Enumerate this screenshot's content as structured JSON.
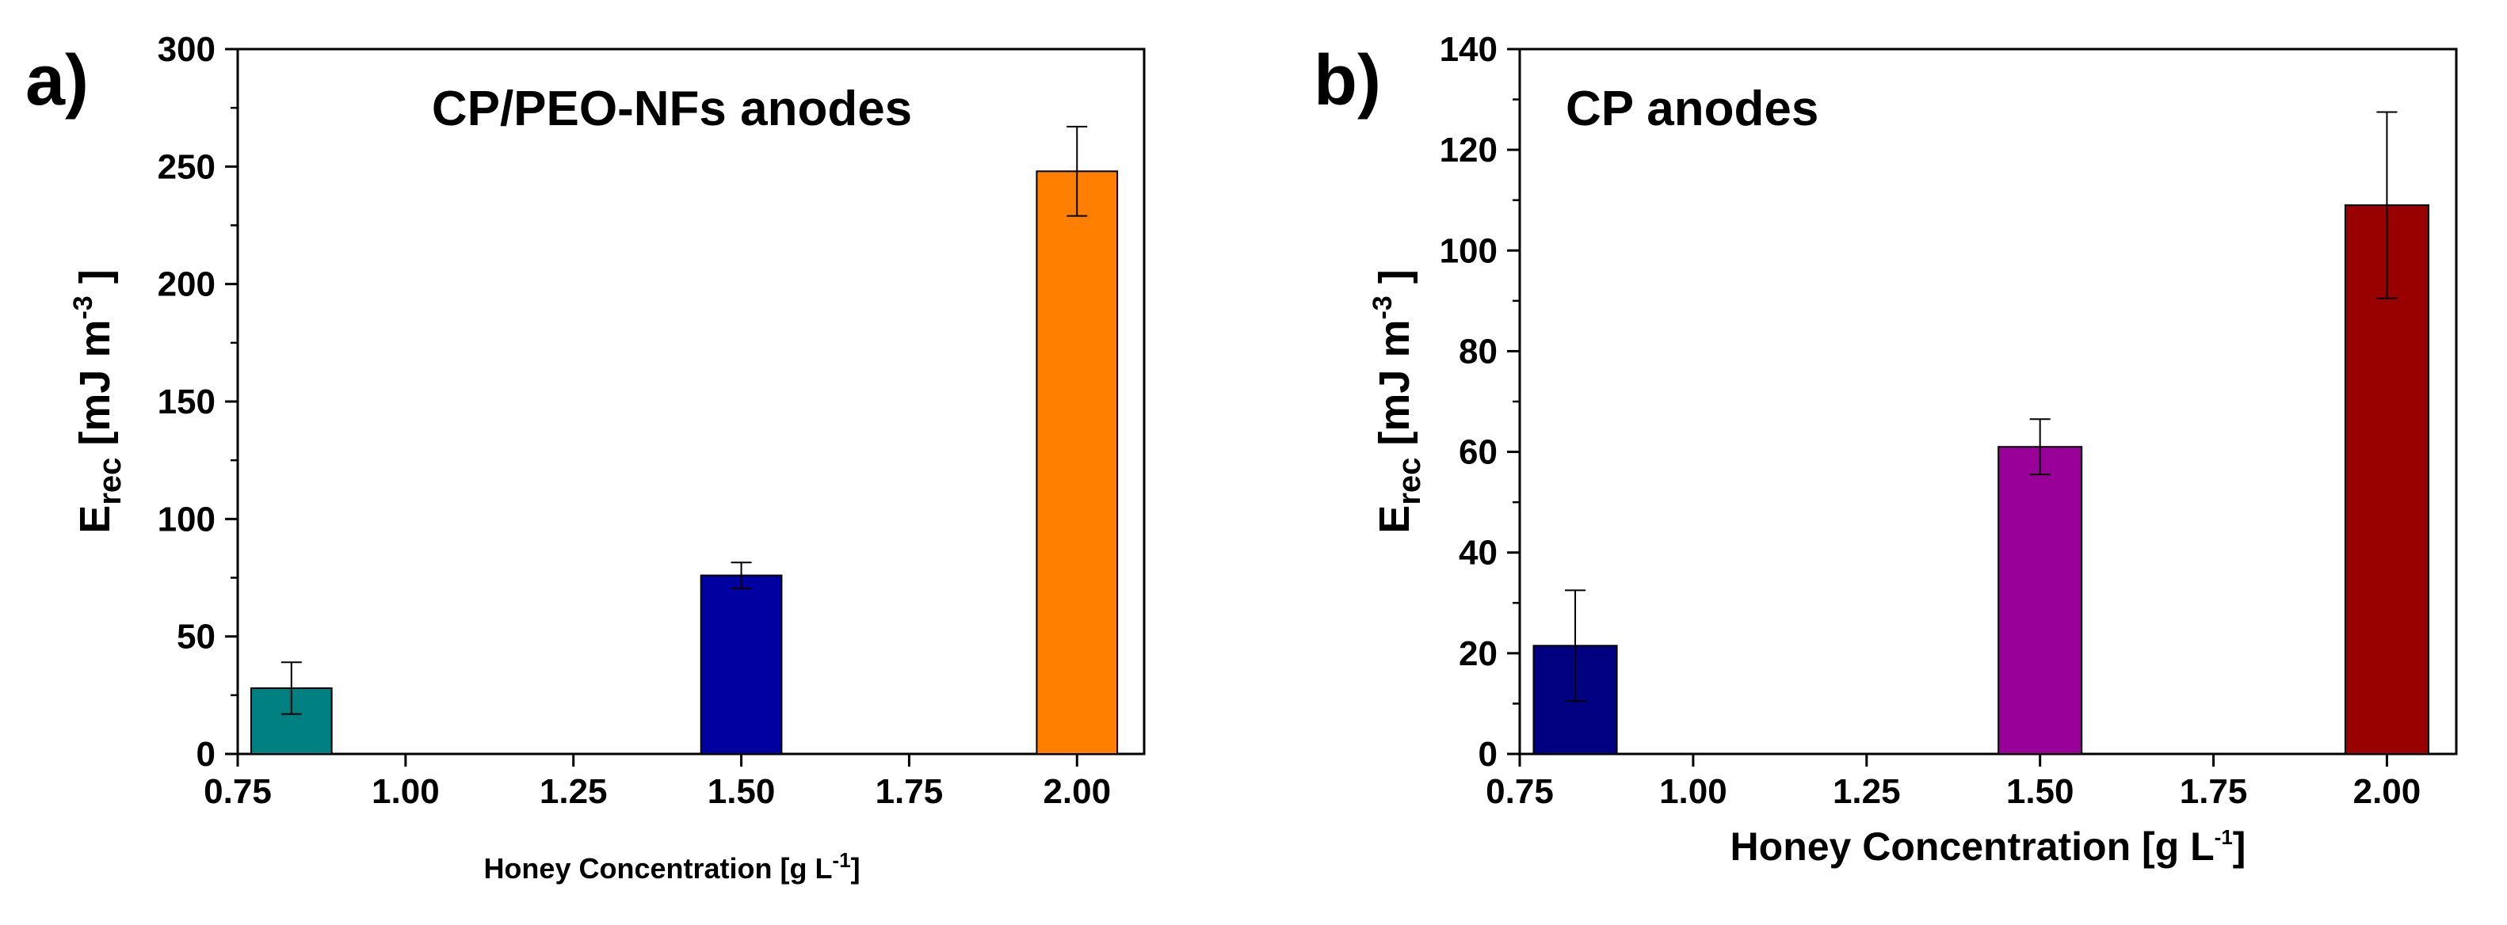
{
  "chart_data": [
    {
      "type": "bar",
      "panel_label": "a)",
      "title": "CP/PEO-NFs anodes",
      "xlabel_main": "Honey Concentration [g L",
      "xlabel_sup": "-1",
      "xlabel_end": "]",
      "ylabel_base": "E",
      "ylabel_sub": "rec",
      "ylabel_unit": " [mJ m",
      "ylabel_sup": "-3",
      "ylabel_end": " ]",
      "xlim": [
        0.75,
        2.1
      ],
      "ylim": [
        0,
        300
      ],
      "xticks": [
        0.75,
        1.0,
        1.25,
        1.5,
        1.75,
        2.0
      ],
      "xtick_labels": [
        "0.75",
        "1.00",
        "1.25",
        "1.50",
        "1.75",
        "2.00"
      ],
      "yticks": [
        0,
        50,
        100,
        150,
        200,
        250,
        300
      ],
      "ytick_labels": [
        "0",
        "50",
        "100",
        "150",
        "200",
        "250",
        "300"
      ],
      "bar_width": 0.12,
      "bars": [
        {
          "x": 0.83,
          "value": 28,
          "error": 11,
          "color": "#008080"
        },
        {
          "x": 1.5,
          "value": 76,
          "error": 5.5,
          "color": "#0000A0"
        },
        {
          "x": 2.0,
          "value": 248,
          "error": 19,
          "color": "#FF8000"
        }
      ]
    },
    {
      "type": "bar",
      "panel_label": "b)",
      "title": "CP anodes",
      "xlabel_main": "Honey Concentration [g L",
      "xlabel_sup": "-1",
      "xlabel_end": "]",
      "ylabel_base": "E",
      "ylabel_sub": "rec",
      "ylabel_unit": " [mJ m",
      "ylabel_sup": "-3",
      "ylabel_end": " ]",
      "xlim": [
        0.75,
        2.1
      ],
      "ylim": [
        0,
        140
      ],
      "xticks": [
        0.75,
        1.0,
        1.25,
        1.5,
        1.75,
        2.0
      ],
      "xtick_labels": [
        "0.75",
        "1.00",
        "1.25",
        "1.50",
        "1.75",
        "2.00"
      ],
      "yticks": [
        0,
        20,
        40,
        60,
        80,
        100,
        120,
        140
      ],
      "ytick_labels": [
        "0",
        "20",
        "40",
        "60",
        "80",
        "100",
        "120",
        "140"
      ],
      "bar_width": 0.12,
      "bars": [
        {
          "x": 0.83,
          "value": 21.5,
          "error": 11,
          "color": "#000080"
        },
        {
          "x": 1.5,
          "value": 61,
          "error": 5.5,
          "color": "#990099"
        },
        {
          "x": 2.0,
          "value": 109,
          "error": 18.5,
          "color": "#990000"
        }
      ]
    }
  ]
}
